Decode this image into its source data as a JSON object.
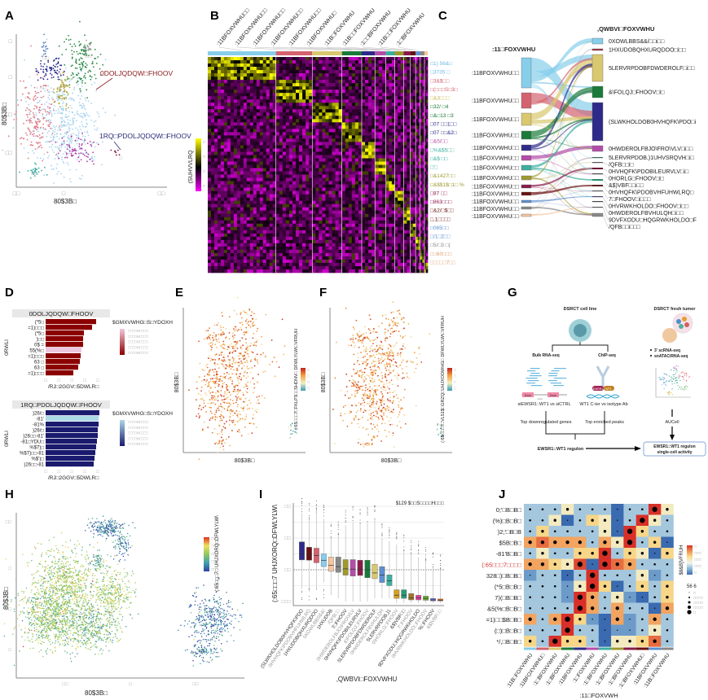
{
  "panels": {
    "A": "A",
    "B": "B",
    "C": "C",
    "D": "D",
    "E": "E",
    "F": "F",
    "G": "G",
    "H": "H",
    "I": "I",
    "J": "J"
  },
  "colors": {
    "clusters": [
      "#87ceeb",
      "#d4626f",
      "#d9c86e",
      "#1a7a3a",
      "#2e2a8a",
      "#b44ca8",
      "#3aafa0",
      "#9e9a2e",
      "#8a1a4a",
      "#6a1010",
      "#5b8fd0",
      "#888888",
      "#f5c6a0"
    ],
    "malignant": "#8b1a1a",
    "non_malignant": "#2a2a7a"
  },
  "panel_a": {
    "malignant_label": "0DOLJQDQW□FHOOV",
    "non_malignant_label": "1RQ□PDOLJQDQW□FHOOV",
    "xlabel": "80$3B□",
    "ylabel": "80$3B□",
    "yticks": [
      "□",
      "□",
      "□□",
      "□□"
    ],
    "xticks": [
      "□□",
      "□",
      "□□"
    ],
    "cluster_tags": [
      "□□",
      "□□",
      "□□",
      "□□",
      "□"
    ]
  },
  "panel_b": {
    "column_labels": [
      ":11BFOXVWHU□□",
      ":11BFOXVWHU□□",
      ":11BFOXVWHU□□",
      ":11BFOXVWHU□□",
      ":11BFOXVWHU□□",
      ":11BFOXVWHU□",
      ":11B□FOXVWHU",
      ":11B□□FOXVWHU",
      ":1□□BFOXVWHU",
      ":11B□□FOXVWHU",
      ":1□BFOXVWHU"
    ],
    "colorbar_label": "(SUHVVLRQ",
    "colorbar_ticks": [
      "□",
      "□",
      "□",
      "□"
    ],
    "gene_labels": [
      {
        "text": "□1) 56&□",
        "color": "#6cb8e0"
      },
      {
        "text": "□3735 □",
        "color": "#6cb8e0"
      },
      {
        "text": "□3&$□□",
        "color": "#d4626f"
      },
      {
        "text": "□(□□□S□3□",
        "color": "#d4626f"
      },
      {
        "text": "□&3□□□",
        "color": "#c9b44e"
      },
      {
        "text": "□32/ □4",
        "color": "#1a7a3a"
      },
      {
        "text": "□&□13 □3",
        "color": "#1a7a3a"
      },
      {
        "text": "□07 □□1□□",
        "color": "#2e2a8a"
      },
      {
        "text": "□07 □□&2□",
        "color": "#2e2a8a"
      },
      {
        "text": "□&5/□□",
        "color": "#b44ca8"
      },
      {
        "text": "□%&$5□□",
        "color": "#3aafa0"
      },
      {
        "text": "□&$ □□",
        "color": "#3aafa0"
      },
      {
        "text": "□'□",
        "color": "#3aafa0"
      },
      {
        "text": "□&1427□□",
        "color": "#9e9a2e"
      },
      {
        "text": "□&$$1$□1□ %",
        "color": "#9e9a2e"
      },
      {
        "text": "□87 □□",
        "color": "#8a1a4a"
      },
      {
        "text": "□863□□□",
        "color": "#8a1a4a"
      },
      {
        "text": "□&2/□$□□",
        "color": "#6a1010"
      },
      {
        "text": "□,1□□□□",
        "color": "#6a1010"
      },
      {
        "text": "□065□□",
        "color": "#5b8fd0"
      },
      {
        "text": "□/1□2□□",
        "color": "#5b8fd0"
      },
      {
        "text": "□5/□3 □(",
        "color": "#888888"
      },
      {
        "text": "□□60□□□",
        "color": "#e0a070"
      },
      {
        "text": "□□□□□7□□",
        "color": "#e0a070"
      }
    ]
  },
  "panel_c": {
    "left_title": ":11□FOXVWHU",
    "right_title": ",QWBVI□FOXVWHU",
    "left_nodes": [
      ":11BFOXVWHU□□",
      ":11BFOXVWHU□□",
      ":11BFOXVWHU□□",
      ":11BFOXVWHU□□",
      ":11BFOXVWHU□□",
      ":11BFOXVWHU□□",
      ":11BFOXVWHU□□",
      ":11BFOXVWHU□□",
      ":11BFOXVWHU□□",
      ":11BFOXVWHU□□",
      ":11BFOXVWHU□□",
      ":11BFOXVWHU□□",
      ":11BFOXVWHU□□"
    ],
    "right_nodes": [
      {
        "label": "0XOWLBBS&&/□□i□□",
        "color": "#87ceeb"
      },
      {
        "label": "1HXUDOBQHXURQDOO□i□□",
        "color": "#a03040"
      },
      {
        "label": "5LERVRPDOBFDWDEROLF□i□□",
        "color": "#d9c86e"
      },
      {
        "label": "&\\FOLQJ□FHOOV□i□",
        "color": "#1a7a3a"
      },
      {
        "label": "(SLWKHOLDOB0HVHQFK\\PDO□i",
        "color": "#2e2a8a"
      },
      {
        "label": "0HWDEROLFBJO\\FRO\\VLV□i□□",
        "color": "#b44ca8"
      },
      {
        "label": "5LERVRPDOB,)1UHVSRQVH□i□",
        "color": "#3a6a5a"
      },
      {
        "label": "/QFB□□i□",
        "color": "#555555"
      },
      {
        "label": "0HVHQFK\\PDOBILEURVLV□i□",
        "color": "#6a1030"
      },
      {
        "label": "0HORLG□FHOOV□i□",
        "color": "#444444"
      },
      {
        "label": "&$)VBF□□i□□",
        "color": "#2a8a6a"
      },
      {
        "label": "0HVHQFK\\PDOBVHFUHWLRQ□",
        "color": "#5a2020"
      },
      {
        "label": "7□FHOOV□i□□□",
        "color": "#555555"
      },
      {
        "label": "0HVRWKHOLDO□FHOOV□i□□",
        "color": "#444466"
      },
      {
        "label": "0HWDEROLFBVHULQH□i□□",
        "color": "#444444"
      },
      {
        "label": "9DVFXODU□HQGRWKHOLDO□F",
        "color": "#555555"
      },
      {
        "label": "/QFB□□i□□□",
        "color": "#888888"
      }
    ]
  },
  "panel_d": {
    "top": {
      "title": "0DOLJQDQW□FHOOV",
      "ylabel": "0RWLI",
      "xlabel": "/RJ□2GGV□5DWLR□",
      "xticks": [
        "□",
        "□",
        "□",
        "□",
        "□"
      ],
      "legend_title": "$GMXVWHG□S□YDOXH",
      "legend_ticks": [
        "□□□□H□□□□",
        "□□□□H□□□□",
        "□□□□H□□□□",
        "□□□□H□□□□",
        "□□□□H□□□□"
      ],
      "bars": [
        {
          "label": "(*5□",
          "value": 62,
          "color": "#8b0000"
        },
        {
          "label": "=1)□□□",
          "value": 57,
          "color": "#8b0000"
        },
        {
          "label": "(*5□",
          "value": 47,
          "color": "#8b0000"
        },
        {
          "label": ")□□",
          "value": 46,
          "color": "#8b0000"
        },
        {
          "label": "0$ =",
          "value": 46,
          "color": "#8b0000"
        },
        {
          "label": "55(%□",
          "value": 44,
          "color": "#ecc8e0"
        },
        {
          "label": "=1)□□□",
          "value": 43,
          "color": "#8b0000"
        },
        {
          "label": "63 □",
          "value": 42,
          "color": "#8b0000"
        },
        {
          "label": "63 □",
          "value": 40,
          "color": "#8b0000"
        },
        {
          "label": "=1)□□□",
          "value": 34,
          "color": "#8b0000"
        }
      ]
    },
    "bottom": {
      "title": "1RQ□PDOLJQDQW□FHOOV",
      "ylabel": "0RWLI",
      "xlabel": "/RJ□2GGV□5DWLR□",
      "xticks": [
        "□",
        "□",
        "□",
        "□",
        "□"
      ],
      "legend_title": "$GMXVWHG□S□YDOXH",
      "legend_ticks": [
        "□□□□H□□□□",
        "□□□□H□□□□",
        "□□□□H□□□□",
        "□□□□H□□□□",
        "□□□□H□□□□"
      ],
      "bars": [
        {
          "label": ")26/□",
          "value": 66,
          "color": "#1a1a6e"
        },
        {
          "label": "-81'",
          "value": 65,
          "color": "#add8e6"
        },
        {
          "label": "-81%",
          "value": 65,
          "color": "#1a1a6e"
        },
        {
          "label": ")26/□",
          "value": 64,
          "color": "#1a1a6e"
        },
        {
          "label": ")26□□-81'",
          "value": 64,
          "color": "#1a1a6e"
        },
        {
          "label": "-81□YDU□",
          "value": 63,
          "color": "#1a1a6e"
        },
        {
          "label": "%$7)□",
          "value": 62,
          "color": "#1a1a6e"
        },
        {
          "label": "%$7)□□-81",
          "value": 61,
          "color": "#1a1a6e"
        },
        {
          "label": "%$')□",
          "value": 60,
          "color": "#1a1a6e"
        },
        {
          "label": ")26□□-81",
          "value": 59,
          "color": "#1a1a6e"
        }
      ]
    }
  },
  "panel_e": {
    "colorbar_label": "(:65□□□7□FKLP3□□SHDNV□ DFWLYLW\\□VFRUH",
    "xlabel": "80$3B□",
    "ylabel": "80$3B□",
    "ticks": [
      "□",
      "□",
      "□",
      "□"
    ]
  },
  "panel_f": {
    "colorbar_label": "(:65□□□7□VL51$□GRZQ□UHJXODWHG□ DFWLYLW\\□VFRUH",
    "xlabel": "80$3B□",
    "ylabel": "80$3B□",
    "ticks": [
      "□",
      "□",
      "□",
      "□"
    ]
  },
  "panel_g": {
    "cell_line_title": "DSRCT cell line",
    "tumor_title": "DSRCT fresh tumor",
    "bulk": "Bulk RNA-seq",
    "chip": "ChIP-seq",
    "exon": "Exon",
    "intron": "Intron",
    "si_label": "siEWSR1::WT1 vs siCTRL",
    "ab_label": "WT1 C-ter vs isotype Ab",
    "fusion_left": "EWSR1",
    "fusion_right": "WT1",
    "top_down": "Top downregulated genes",
    "top_peaks": "Top enriched peaks",
    "bullets": [
      "3' scRNA-seq",
      "snATAC/RNA-seq"
    ],
    "aucell": "AUCell",
    "regulon": "EWSR1::WT1 regulon",
    "result_line1": "EWSR1::WT1 regulon",
    "result_line2": "single-cell activity"
  },
  "panel_h": {
    "colorbar_label": "(:65□□□7□ UHJXORQ□DFWLYLW\\",
    "xlabel": "80$3B□",
    "ylabel": "80$3B□",
    "ticks": [
      "□□",
      "□□",
      "□□",
      "□□",
      "□□"
    ],
    "axis_ticks": [
      "□□",
      "□",
      "□□",
      "□",
      "□□"
    ]
  },
  "chart_data": {
    "type": "box",
    "title": "",
    "annotation": "$129 $□□S□□□□H□□□",
    "ylabel": "(:65□□□7 UHJXORQ□DFWLYLW\\",
    "xlabel": ",QWBVI□FOXVWHU",
    "yticks": [
      "□□□",
      "□□",
      "□□",
      "□□"
    ],
    "ylim": [
      -0.1,
      3.0
    ],
    "reference_line": 1.0,
    "categories": [
      "(SLWKHOLDOB0HVHQFK\\PDO",
      "0HVHQFK\\PDOBVHFUHWLRQ",
      "1HXUDOBQHXURQDOO",
      "0XOWLBBS&&/",
      "1HXUDOB",
      "/QFB□□",
      "7□FHOOV",
      "0HWDEROLFBJO\\FRO\\VLV",
      "0HVHQFK\\PDOBILEURVLV",
      "&\\FOLQJ□FHOOV",
      "5LERVRPDOBFDWDEROLF",
      "0HWDEROLFBVHULQH",
      "5LERVRPDOB,)1",
      "0\\HORLG□FHOOV",
      "&$)VBF□□",
      "7□FHOOV",
      "9DVFXODU□HQGRWKHOLDO",
      "0HVRWKHOLDO□FHOOV",
      "%□FHOOV",
      "&$)VBF□□"
    ],
    "colors": [
      "#2e2a8a",
      "#6a1010",
      "#d4626f",
      "#87ceeb",
      "#f5c6a0",
      "#888888",
      "#9e9a2e",
      "#b44ca8",
      "#8a1a4a",
      "#1a7a3a",
      "#d9c86e",
      "#5b8fd0",
      "#3aafa0",
      "#d9a020",
      "#2a9a7a",
      "#a0742a",
      "#e0409a",
      "#6aa830",
      "#6a6ac8",
      "#d86018"
    ],
    "q1": [
      1.31,
      1.3,
      1.22,
      1.1,
      0.95,
      0.92,
      0.83,
      0.8,
      0.82,
      0.75,
      0.72,
      0.6,
      0.5,
      0.1,
      0.1,
      0.05,
      0.05,
      0.04,
      0.02,
      0.02
    ],
    "median": [
      1.5,
      1.48,
      1.45,
      1.3,
      1.14,
      1.1,
      1.03,
      1.02,
      1.02,
      1.0,
      0.9,
      0.83,
      0.65,
      0.2,
      0.2,
      0.12,
      0.12,
      0.1,
      0.05,
      0.04
    ],
    "q3": [
      1.88,
      1.71,
      1.68,
      1.5,
      1.4,
      1.4,
      1.32,
      1.32,
      1.3,
      1.3,
      1.17,
      1.1,
      0.84,
      0.37,
      0.37,
      0.25,
      0.2,
      0.17,
      0.1,
      0.08
    ],
    "whisker_high": [
      2.8,
      2.6,
      2.8,
      2.6,
      2.0,
      2.1,
      2.4,
      2.5,
      2.4,
      2.5,
      2.6,
      2.0,
      1.9,
      1.8,
      1.6,
      1.5,
      1.4,
      1.3,
      1.1,
      1.0
    ],
    "whisker_low": [
      0.4,
      0.3,
      0.4,
      0.6,
      0.2,
      0.1,
      0.0,
      0.0,
      0.0,
      0.0,
      0.1,
      0.1,
      0.1,
      -0.05,
      -0.05,
      -0.05,
      -0.05,
      -0.05,
      -0.05,
      -0.05
    ]
  },
  "panel_j": {
    "rows": [
      "0;'□B□B□",
      "(%)□B□B□",
      ")2;'□B□B",
      "$5B□B□",
      "-81'B□B□",
      "(:65□□□7□□□□",
      "328□)□B□B□",
      "(*5□B□B□",
      "7)(□B□B□",
      "&5(%□B□B□",
      "=1)□□$B□B□",
      "(□)□B□B□",
      "*/,□B□B□"
    ],
    "highlight_row": 5,
    "highlight_color": "#d03030",
    "columns": [
      ":11B□FOXVWHU",
      ":11BFOXVWHU□",
      ":1□BFOXVWHU",
      ":1□BFOXVWHU",
      ":11BFOXVWHU",
      ":1□FOXVWHU",
      ":1□BFOXVWHU",
      ":1□BFOXVWHU",
      ":1□BFOXVWHU",
      ":1□BFOXVWHU□",
      ":11BFOXVWHU",
      ":11B□FOXVWHU"
    ],
    "xlabel": ":11□FOXVWH",
    "colorbar_label": "$8&B]VFRUH",
    "colorbar_ticks": [
      "□",
      "□□□",
      "□□□",
      "□□□",
      "□"
    ],
    "size_title": "56 6",
    "size_ticks": [
      "□",
      "□□□□",
      "□□□□",
      "□□□□",
      "□"
    ],
    "values": [
      [
        -1,
        -1,
        -1,
        0,
        -1,
        -1,
        -1,
        -2,
        -1,
        -1,
        2,
        0
      ],
      [
        -1,
        -1,
        0,
        -2,
        -1,
        0.5,
        0,
        -2,
        -1,
        2,
        0,
        -1
      ],
      [
        -1,
        0.5,
        -1,
        -1,
        -1,
        -1,
        0,
        -2,
        2,
        0.5,
        -1,
        -1
      ],
      [
        1,
        1.5,
        1,
        1,
        1,
        -1,
        1,
        0,
        2,
        -1,
        0.5,
        -2
      ],
      [
        -1,
        0,
        -1,
        -1,
        0.5,
        0.5,
        2,
        -1,
        0.5,
        0,
        -2,
        0.5
      ],
      [
        1,
        1,
        0.5,
        0,
        1.8,
        -2,
        2,
        1.5,
        1,
        -1,
        -1,
        -1
      ],
      [
        -1.5,
        -1,
        -1,
        -2,
        -1,
        2,
        -1,
        -1,
        -1,
        0,
        -1.5,
        -1
      ],
      [
        -1,
        -1,
        -1,
        -1.5,
        0,
        2,
        0.5,
        -2,
        -1,
        0.5,
        -1,
        0.5
      ],
      [
        -1,
        -1,
        -1,
        -1.5,
        2,
        1,
        -1,
        0,
        -1.5,
        -2,
        -1,
        0.5
      ],
      [
        -1,
        -1,
        -1,
        -1,
        2,
        1,
        -1,
        1,
        -1,
        -1,
        -2,
        1
      ],
      [
        1,
        -1,
        1,
        2,
        0.5,
        -1.5,
        -2,
        1,
        -1.5,
        -1,
        1,
        -1
      ],
      [
        -1,
        -1,
        -1,
        2,
        -1,
        -1,
        -2,
        -1.5,
        -1.5,
        -1,
        0,
        -1
      ],
      [
        0.5,
        -1,
        2,
        0.5,
        0.5,
        -1,
        -2,
        0,
        0,
        0.5,
        1.5,
        -1
      ]
    ]
  }
}
